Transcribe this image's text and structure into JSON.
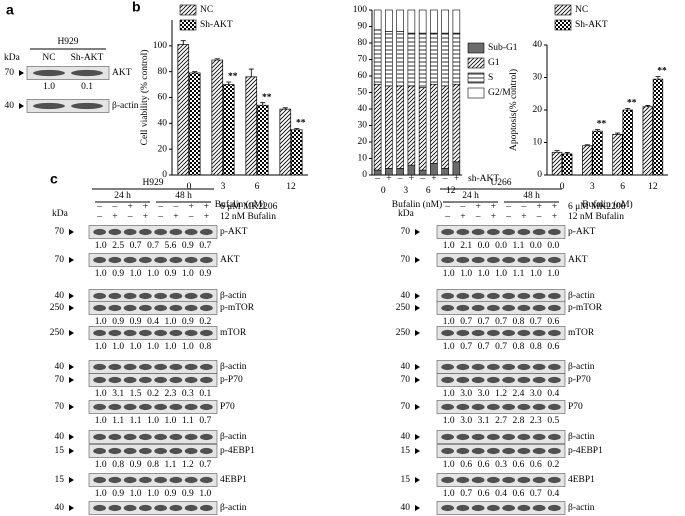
{
  "panel_a": {
    "label": "a",
    "kda_label": "kDa",
    "cell_line": "H929",
    "lanes": [
      "NC",
      "Sh-AKT"
    ],
    "rows": [
      {
        "label": "AKT",
        "kda": "70",
        "quant": [
          "1.0",
          "0.1"
        ]
      },
      {
        "label": "β-actin",
        "kda": "40"
      }
    ]
  },
  "panel_b": {
    "label": "b"
  },
  "chart_data": [
    {
      "type": "bar",
      "y_label": "Cell viability (% control)",
      "x_label": "Bufalin (nM)",
      "categories": [
        "0",
        "3",
        "6",
        "12"
      ],
      "series": [
        {
          "name": "NC",
          "color": "#000000",
          "pattern": "diagonal",
          "values": [
            101,
            89,
            76,
            51
          ],
          "errors": [
            3,
            1,
            6,
            1
          ]
        },
        {
          "name": "Sh-AKT",
          "color": "#000000",
          "pattern": "checker",
          "values": [
            79,
            70,
            54,
            35
          ],
          "errors": [
            1,
            2,
            2,
            1
          ],
          "significance": [
            null,
            "**",
            "**",
            "**"
          ]
        }
      ],
      "ylim": [
        0,
        120
      ],
      "yticks": [
        0,
        20,
        40,
        60,
        80,
        100
      ],
      "legend": "upper left",
      "grid": false
    },
    {
      "type": "stacked_bar",
      "x_label": "Bufalin (nM)",
      "row_label": "sh-AKT",
      "categories": [
        "–",
        "+",
        "–",
        "+",
        "–",
        "+",
        "–",
        "+"
      ],
      "groups": [
        "0",
        "3",
        "6",
        "12"
      ],
      "series": [
        {
          "name": "Sub-G1",
          "color": "#6b6b6b",
          "pattern": "solid",
          "values": [
            3,
            4,
            4,
            6,
            3,
            7,
            4,
            8
          ]
        },
        {
          "name": "G1",
          "color": "#000000",
          "pattern": "diagonal",
          "values": [
            52,
            50,
            50,
            48,
            50,
            48,
            50,
            47
          ]
        },
        {
          "name": "S",
          "color": "#000000",
          "pattern": "horizontal",
          "values": [
            33,
            33,
            33,
            32,
            33,
            31,
            32,
            31
          ]
        },
        {
          "name": "G2/M",
          "color": "#ffffff",
          "pattern": "solid",
          "values": [
            12,
            13,
            13,
            14,
            14,
            14,
            14,
            14
          ]
        }
      ],
      "ylim": [
        0,
        100
      ],
      "yticks": [
        0,
        10,
        20,
        30,
        40,
        50,
        60,
        70,
        80,
        90,
        100
      ],
      "legend": "right",
      "grid": false
    },
    {
      "type": "bar",
      "y_label": "Apoptosis(% control)",
      "x_label": "Bufalin (nM)",
      "categories": [
        "0",
        "3",
        "6",
        "12"
      ],
      "series": [
        {
          "name": "NC",
          "color": "#000000",
          "pattern": "diagonal",
          "values": [
            7,
            9,
            12.5,
            21
          ],
          "errors": [
            0.5,
            0.3,
            0.4,
            0.4
          ]
        },
        {
          "name": "Sh-AKT",
          "color": "#000000",
          "pattern": "checker",
          "values": [
            6.5,
            13.5,
            20,
            29.5
          ],
          "errors": [
            0.4,
            0.5,
            0.5,
            0.8
          ],
          "significance": [
            null,
            "**",
            "**",
            "**"
          ]
        }
      ],
      "ylim": [
        0,
        40
      ],
      "yticks": [
        0,
        10,
        20,
        30,
        40
      ],
      "legend": "upper left",
      "grid": false
    }
  ],
  "panel_c": {
    "label": "c",
    "blots": [
      {
        "cell_line": "H929",
        "kda_label": "kDa",
        "times": [
          "24 h",
          "48 h"
        ],
        "conditions": [
          {
            "label": "6 μM MK2206",
            "lanes": [
              "–",
              "–",
              "+",
              "+",
              "–",
              "–",
              "+",
              "+"
            ]
          },
          {
            "label": "12 nM Bufalin",
            "lanes": [
              "–",
              "+",
              "–",
              "+",
              "–",
              "+",
              "–",
              "+"
            ]
          }
        ],
        "rows": [
          {
            "label": "p-AKT",
            "kda": "70",
            "quant": [
              "1.0",
              "2.5",
              "0.7",
              "0.7",
              "5.6",
              "0.9",
              "0.7"
            ]
          },
          {
            "label": "AKT",
            "kda": "70",
            "quant": [
              "1.0",
              "0.9",
              "1.0",
              "1.0",
              "0.9",
              "1.0",
              "0.9"
            ]
          },
          {
            "label": "β-actin",
            "kda": "40"
          },
          {
            "label": "p-mTOR",
            "kda": "250",
            "quant": [
              "1.0",
              "0.9",
              "0.9",
              "0.4",
              "1.0",
              "0.9",
              "0.2"
            ]
          },
          {
            "label": "mTOR",
            "kda": "250",
            "quant": [
              "1.0",
              "1.0",
              "1.0",
              "1.0",
              "1.0",
              "1.0",
              "0.8"
            ]
          },
          {
            "label": "β-actin",
            "kda": "40"
          },
          {
            "label": "p-P70",
            "kda": "70",
            "quant": [
              "1.0",
              "3.1",
              "1.5",
              "0.2",
              "2.3",
              "0.3",
              "0.1"
            ]
          },
          {
            "label": "P70",
            "kda": "70",
            "quant": [
              "1.0",
              "1.1",
              "1.1",
              "1.0",
              "1.0",
              "1.1",
              "0.7"
            ]
          },
          {
            "label": "β-actin",
            "kda": "40"
          },
          {
            "label": "p-4EBP1",
            "kda": "15",
            "quant": [
              "1.0",
              "0.8",
              "0.9",
              "0.8",
              "1.1",
              "1.2",
              "0.7"
            ]
          },
          {
            "label": "4EBP1",
            "kda": "15",
            "quant": [
              "1.0",
              "0.9",
              "1.0",
              "1.0",
              "0.9",
              "0.9",
              "1.0"
            ]
          },
          {
            "label": "β-actin",
            "kda": "40"
          }
        ]
      },
      {
        "cell_line": "U266",
        "kda_label": "kDa",
        "times": [
          "24 h",
          "48 h"
        ],
        "conditions": [
          {
            "label": "6 μM MK2206",
            "lanes": [
              "–",
              "–",
              "+",
              "+",
              "–",
              "–",
              "+",
              "+"
            ]
          },
          {
            "label": "12 nM Bufalin",
            "lanes": [
              "–",
              "+",
              "–",
              "+",
              "–",
              "+",
              "–",
              "+"
            ]
          }
        ],
        "rows": [
          {
            "label": "p-AKT",
            "kda": "70",
            "quant": [
              "1.0",
              "2.1",
              "0.0",
              "0.0",
              "1.1",
              "0.0",
              "0.0"
            ]
          },
          {
            "label": "AKT",
            "kda": "70",
            "quant": [
              "1.0",
              "1.0",
              "1.0",
              "1.0",
              "1.1",
              "1.0",
              "1.0"
            ]
          },
          {
            "label": "β-actin",
            "kda": "40"
          },
          {
            "label": "p-mTOR",
            "kda": "250",
            "quant": [
              "1.0",
              "0.7",
              "0.7",
              "0.7",
              "0.8",
              "0.7",
              "0.6"
            ]
          },
          {
            "label": "mTOR",
            "kda": "250",
            "quant": [
              "1.0",
              "0.7",
              "0.7",
              "0.7",
              "0.8",
              "0.8",
              "0.6"
            ]
          },
          {
            "label": "β-actin",
            "kda": "40"
          },
          {
            "label": "p-P70",
            "kda": "70",
            "quant": [
              "1.0",
              "3.0",
              "3.0",
              "1.2",
              "2.4",
              "3.0",
              "0.4"
            ]
          },
          {
            "label": "P70",
            "kda": "70",
            "quant": [
              "1.0",
              "3.0",
              "3.1",
              "2.7",
              "2.8",
              "2.3",
              "0.5"
            ]
          },
          {
            "label": "β-actin",
            "kda": "40"
          },
          {
            "label": "p-4EBP1",
            "kda": "15",
            "quant": [
              "1.0",
              "0.6",
              "0.6",
              "0.3",
              "0.6",
              "0.6",
              "0.2"
            ]
          },
          {
            "label": "4EBP1",
            "kda": "15",
            "quant": [
              "1.0",
              "0.7",
              "0.6",
              "0.4",
              "0.6",
              "0.7",
              "0.4"
            ]
          },
          {
            "label": "β-actin",
            "kda": "40"
          }
        ]
      }
    ]
  }
}
